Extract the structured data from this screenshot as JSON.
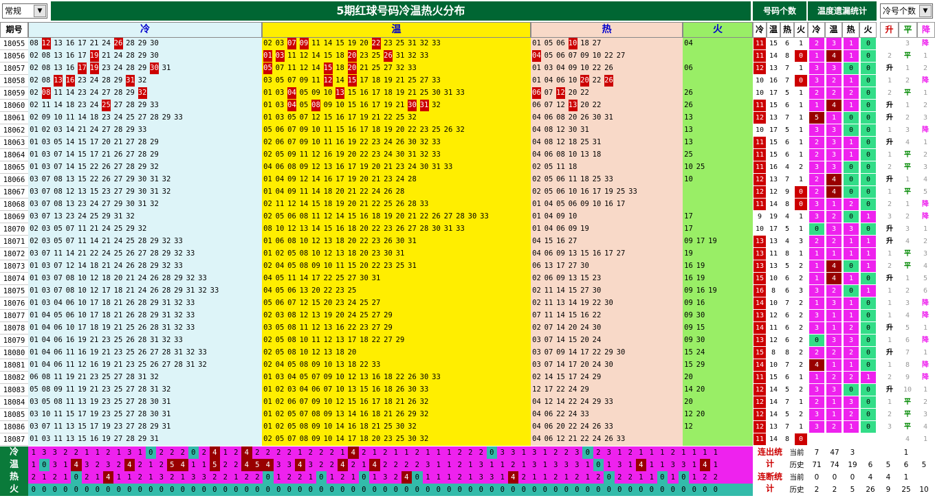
{
  "toolbar": {
    "mode": "常规",
    "title": "5期红球号码冷温热火分布",
    "count_header": "号码个数",
    "stats_header": "温度遗漏统计",
    "sort_select": "冷号个数"
  },
  "headers": {
    "period": "期号",
    "cold": "冷",
    "warm": "温",
    "hot": "热",
    "fire": "火",
    "sub": [
      "冷",
      "温",
      "热",
      "火",
      "冷",
      "温",
      "热",
      "火",
      "升",
      "平",
      "降"
    ]
  },
  "rows": [
    {
      "p": "18055",
      "c": "08 12 13 16 17 21 24 26 28 29 30",
      "w": "02 03 07 09 11 14 15 19 20 22 23 25 31 32 33",
      "h": "01 05 06 10 18 27",
      "f": "04",
      "n": [
        11,
        15,
        6,
        1
      ],
      "t": [
        2,
        3,
        1,
        0
      ],
      "d": [
        "",
        "3",
        "降"
      ]
    },
    {
      "p": "18056",
      "c": "02 08 13 16 17 19 21 24 28 29 30",
      "w": "01 03 11 12 14 15 18 20 23 25 26 31 32 33",
      "h": "04 05 06 07 09 10 22 27",
      "f": "",
      "n": [
        11,
        14,
        8,
        0
      ],
      "t": [
        1,
        4,
        1,
        0
      ],
      "d": [
        "2",
        "平",
        "1"
      ]
    },
    {
      "p": "18057",
      "c": "02 08 13 16 17 19 23 24 28 29 30 31",
      "w": "05 07 11 12 14 15 18 20 21 25 27 32 33",
      "h": "01 03 04 09 10 22 26",
      "f": "06",
      "n": [
        12,
        13,
        7,
        1
      ],
      "t": [
        3,
        3,
        0,
        0
      ],
      "d": [
        "升",
        "1",
        "2"
      ]
    },
    {
      "p": "18058",
      "c": "02 08 13 16 23 24 28 29 31 32",
      "w": "03 05 07 09 11 12 14 15 17 18 19 21 25 27 33",
      "h": "01 04 06 10 20 22 26",
      "f": "",
      "n": [
        10,
        16,
        7,
        0
      ],
      "t": [
        3,
        2,
        1,
        0
      ],
      "d": [
        "1",
        "2",
        "降"
      ]
    },
    {
      "p": "18059",
      "c": "02 08 11 14 23 24 27 28 29 32",
      "w": "01 03 04 05 09 10 13 15 16 17 18 19 21 25 30 31 33",
      "h": "06 07 12 20 22",
      "f": "26",
      "n": [
        10,
        17,
        5,
        1
      ],
      "t": [
        2,
        2,
        2,
        0
      ],
      "d": [
        "2",
        "平",
        "1"
      ]
    },
    {
      "p": "18060",
      "c": "02 11 14 18 23 24 25 27 28 29 33",
      "w": "01 03 04 05 08 09 10 15 16 17 19 21 30 31 32",
      "h": "06 07 12 13 20 22",
      "f": "26",
      "n": [
        11,
        15,
        6,
        1
      ],
      "t": [
        1,
        4,
        1,
        0
      ],
      "d": [
        "升",
        "1",
        "2"
      ]
    },
    {
      "p": "18061",
      "c": "02 09 10 11 14 18 23 24 25 27 28 29 33",
      "w": "01 03 05 07 12 15 16 17 19 21 22 25 32",
      "h": "04 06 08 20 26 30 31",
      "f": "13",
      "n": [
        12,
        13,
        7,
        1
      ],
      "t": [
        5,
        1,
        0,
        0
      ],
      "d": [
        "升",
        "2",
        "3"
      ]
    },
    {
      "p": "18062",
      "c": "01 02 03 14 21 24 27 28 29 33",
      "w": "05 06 07 09 10 11 15 16 17 18 19 20 22 23 25 26 32",
      "h": "04 08 12 30 31",
      "f": "13",
      "n": [
        10,
        17,
        5,
        1
      ],
      "t": [
        3,
        3,
        0,
        0
      ],
      "d": [
        "1",
        "3",
        "降"
      ]
    },
    {
      "p": "18063",
      "c": "01 03 05 14 15 17 20 21 27 28 29",
      "w": "02 06 07 09 10 11 16 19 22 23 24 26 30 32 33",
      "h": "04 08 12 18 25 31",
      "f": "13",
      "n": [
        11,
        15,
        6,
        1
      ],
      "t": [
        2,
        3,
        1,
        0
      ],
      "d": [
        "升",
        "4",
        "1"
      ]
    },
    {
      "p": "18064",
      "c": "01 03 07 14 15 17 21 26 27 28 29",
      "w": "02 05 09 11 12 16 19 20 22 23 24 30 31 32 33",
      "h": "04 06 08 10 13 18",
      "f": "25",
      "n": [
        11,
        15,
        6,
        1
      ],
      "t": [
        2,
        3,
        1,
        0
      ],
      "d": [
        "1",
        "平",
        "2"
      ]
    },
    {
      "p": "18065",
      "c": "01 03 07 14 15 22 26 27 28 29 32",
      "w": "04 06 08 09 12 13 16 17 19 20 21 23 24 30 31 33",
      "h": "02 05 11 18",
      "f": "10 25",
      "n": [
        11,
        16,
        4,
        2
      ],
      "t": [
        3,
        3,
        0,
        0
      ],
      "d": [
        "2",
        "平",
        "3"
      ]
    },
    {
      "p": "18066",
      "c": "03 07 08 13 15 22 26 27 29 30 31 32",
      "w": "01 04 09 12 14 16 17 19 20 21 23 24 28",
      "h": "02 05 06 11 18 25 33",
      "f": "10",
      "n": [
        12,
        13,
        7,
        1
      ],
      "t": [
        2,
        4,
        0,
        0
      ],
      "d": [
        "升",
        "1",
        "4"
      ]
    },
    {
      "p": "18067",
      "c": "03 07 08 12 13 15 23 27 29 30 31 32",
      "w": "01 04 09 11 14 18 20 21 22 24 26 28",
      "h": "02 05 06 10 16 17 19 25 33",
      "f": "",
      "n": [
        12,
        12,
        9,
        0
      ],
      "t": [
        2,
        4,
        0,
        0
      ],
      "d": [
        "1",
        "平",
        "5"
      ]
    },
    {
      "p": "18068",
      "c": "03 07 08 13 23 24 27 29 30 31 32",
      "w": "02 11 12 14 15 18 19 20 21 22 25 26 28 33",
      "h": "01 04 05 06 09 10 16 17",
      "f": "",
      "n": [
        11,
        14,
        8,
        0
      ],
      "t": [
        3,
        1,
        2,
        0
      ],
      "d": [
        "2",
        "1",
        "降"
      ]
    },
    {
      "p": "18069",
      "c": "03 07 13 23 24 25 29 31 32",
      "w": "02 05 06 08 11 12 14 15 16 18 19 20 21 22 26 27 28 30 33",
      "h": "01 04 09 10",
      "f": "17",
      "n": [
        9,
        19,
        4,
        1
      ],
      "t": [
        3,
        2,
        0,
        1
      ],
      "d": [
        "3",
        "2",
        "降"
      ]
    },
    {
      "p": "18070",
      "c": "02 03 05 07 11 21 24 25 29 32",
      "w": "08 10 12 13 14 15 16 18 20 22 23 26 27 28 30 31 33",
      "h": "01 04 06 09 19",
      "f": "17",
      "n": [
        10,
        17,
        5,
        1
      ],
      "t": [
        0,
        3,
        3,
        0
      ],
      "d": [
        "升",
        "3",
        "1"
      ]
    },
    {
      "p": "18071",
      "c": "02 03 05 07 11 14 21 24 25 28 29 32 33",
      "w": "01 06 08 10 12 13 18 20 22 23 26 30 31",
      "h": "04 15 16 27",
      "f": "09 17 19",
      "n": [
        13,
        13,
        4,
        3
      ],
      "t": [
        2,
        2,
        1,
        1
      ],
      "d": [
        "升",
        "4",
        "2"
      ]
    },
    {
      "p": "18072",
      "c": "03 07 11 14 21 22 24 25 26 27 28 29 32 33",
      "w": "01 02 05 08 10 12 13 18 20 23 30 31",
      "h": "04 06 09 13 15 16 17 27",
      "f": "19",
      "n": [
        13,
        11,
        8,
        1
      ],
      "t": [
        1,
        1,
        1,
        1
      ],
      "d": [
        "1",
        "平",
        "3"
      ]
    },
    {
      "p": "18073",
      "c": "01 03 07 12 14 18 21 24 26 28 29 32 33",
      "w": "02 04 05 08 09 10 11 15 20 22 23 25 31",
      "h": "06 13 17 27 30",
      "f": "16 19",
      "n": [
        13,
        13,
        5,
        2
      ],
      "t": [
        1,
        4,
        0,
        1
      ],
      "d": [
        "2",
        "平",
        "4"
      ]
    },
    {
      "p": "18074",
      "c": "01 03 07 08 10 12 18 20 21 24 26 28 29 32 33",
      "w": "04 05 11 14 17 22 25 27 30 31",
      "h": "02 06 09 13 15 23",
      "f": "16 19",
      "n": [
        15,
        10,
        6,
        2
      ],
      "t": [
        1,
        4,
        1,
        0
      ],
      "d": [
        "升",
        "1",
        "5"
      ]
    },
    {
      "p": "18075",
      "c": "01 03 07 08 10 12 17 18 21 24 26 28 29 31 32 33",
      "w": "04 05 06 13 20 22 23 25",
      "h": "02 11 14 15 27 30",
      "f": "09 16 19",
      "n": [
        16,
        8,
        6,
        3
      ],
      "t": [
        3,
        2,
        0,
        1
      ],
      "d": [
        "1",
        "2",
        "6"
      ]
    },
    {
      "p": "18076",
      "c": "01 03 04 06 10 17 18 21 26 28 29 31 32 33",
      "w": "05 06 07 12 15 20 23 24 25 27",
      "h": "02 11 13 14 19 22 30",
      "f": "09 16",
      "n": [
        14,
        10,
        7,
        2
      ],
      "t": [
        1,
        3,
        1,
        0
      ],
      "d": [
        "1",
        "3",
        "降"
      ]
    },
    {
      "p": "18077",
      "c": "01 04 05 06 10 17 18 21 26 28 29 31 32 33",
      "w": "02 03 08 12 13 19 20 24 25 27 29",
      "h": "07 11 14 15 16 22",
      "f": "09 30",
      "n": [
        13,
        12,
        6,
        2
      ],
      "t": [
        3,
        1,
        1,
        0
      ],
      "d": [
        "1",
        "4",
        "降"
      ]
    },
    {
      "p": "18078",
      "c": "01 04 06 10 17 18 19 21 25 26 28 31 32 33",
      "w": "03 05 08 11 12 13 16 22 23 27 29",
      "h": "02 07 14 20 24 30",
      "f": "09 15",
      "n": [
        14,
        11,
        6,
        2
      ],
      "t": [
        3,
        1,
        2,
        0
      ],
      "d": [
        "升",
        "5",
        "1"
      ]
    },
    {
      "p": "18079",
      "c": "01 04 06 16 19 21 23 25 26 28 31 32 33",
      "w": "02 05 08 10 11 12 13 17 18 22 27 29",
      "h": "03 07 14 15 20 24",
      "f": "09 30",
      "n": [
        13,
        12,
        6,
        2
      ],
      "t": [
        0,
        3,
        3,
        0
      ],
      "d": [
        "1",
        "6",
        "降"
      ]
    },
    {
      "p": "18080",
      "c": "01 04 06 11 16 19 21 23 25 26 27 28 31 32 33",
      "w": "02 05 08 10 12 13 18 20",
      "h": "03 07 09 14 17 22 29 30",
      "f": "15 24",
      "n": [
        15,
        8,
        8,
        2
      ],
      "t": [
        2,
        2,
        2,
        0
      ],
      "d": [
        "升",
        "7",
        "1"
      ]
    },
    {
      "p": "18081",
      "c": "01 04 06 11 12 16 19 21 23 25 26 27 28 31 32",
      "w": "02 04 05 08 09 10 13 18 22 33",
      "h": "03 07 14 17 20 24 30",
      "f": "15 29",
      "n": [
        14,
        10,
        7,
        2
      ],
      "t": [
        4,
        1,
        1,
        0
      ],
      "d": [
        "1",
        "8",
        "降"
      ]
    },
    {
      "p": "18082",
      "c": "06 08 11 19 21 23 25 27 28 31 32",
      "w": "01 03 04 05 07 09 10 12 13 16 18 22 26 30 33",
      "h": "02 14 15 17 24 29",
      "f": "20",
      "n": [
        11,
        15,
        6,
        1
      ],
      "t": [
        1,
        2,
        2,
        1
      ],
      "d": [
        "2",
        "9",
        "降"
      ]
    },
    {
      "p": "18083",
      "c": "05 08 09 11 19 21 23 25 27 28 31 32",
      "w": "01 02 03 04 06 07 10 13 15 16 18 26 30 33",
      "h": "12 17 22 24 29",
      "f": "14 20",
      "n": [
        12,
        14,
        5,
        2
      ],
      "t": [
        3,
        3,
        0,
        0
      ],
      "d": [
        "升",
        "10",
        "1"
      ]
    },
    {
      "p": "18084",
      "c": "03 05 08 11 13 19 23 25 27 28 30 31",
      "w": "01 02 06 07 09 10 12 15 16 17 18 21 26 32",
      "h": "04 12 14 22 24 29 33",
      "f": "20",
      "n": [
        12,
        14,
        7,
        1
      ],
      "t": [
        2,
        1,
        3,
        0
      ],
      "d": [
        "1",
        "平",
        "2"
      ]
    },
    {
      "p": "18085",
      "c": "03 10 11 15 17 19 23 25 27 28 30 31",
      "w": "01 02 05 07 08 09 13 14 16 18 21 26 29 32",
      "h": "04 06 22 24 33",
      "f": "12 20",
      "n": [
        12,
        14,
        5,
        2
      ],
      "t": [
        3,
        1,
        2,
        0
      ],
      "d": [
        "2",
        "平",
        "3"
      ]
    },
    {
      "p": "18086",
      "c": "03 07 11 13 15 17 19 23 27 28 29 31",
      "w": "01 02 05 08 09 10 14 16 18 21 25 30 32",
      "h": "04 06 20 22 24 26 33",
      "f": "12",
      "n": [
        12,
        13,
        7,
        1
      ],
      "t": [
        3,
        2,
        1,
        0
      ],
      "d": [
        "3",
        "平",
        "4"
      ]
    },
    {
      "p": "18087",
      "c": "01 03 11 13 15 16 19 27 28 29 31",
      "w": "02 05 07 08 09 10 14 17 18 20 23 25 30 32",
      "h": "04 06 12 21 22 24 26 33",
      "f": "",
      "n": [
        11,
        14,
        8,
        0
      ],
      "t": [
        "",
        "",
        "",
        ""
      ],
      "d": [
        "",
        "4",
        "1"
      ]
    }
  ],
  "hot_marks": {
    "18055": [
      "12",
      "26",
      "07",
      "09",
      "22",
      "10"
    ],
    "18056": [
      "19",
      "01",
      "03",
      "20",
      "26",
      "04"
    ],
    "18057": [
      "17",
      "19",
      "30",
      "05",
      "15",
      "20"
    ],
    "18058": [
      "13",
      "16",
      "31",
      "12",
      "15",
      "20",
      "26"
    ],
    "18059": [
      "08",
      "32",
      "04",
      "13",
      "06",
      "12"
    ],
    "18060": [
      "25",
      "04",
      "08",
      "30",
      "31",
      "13"
    ]
  },
  "bottom": {
    "labels": [
      "冷",
      "温",
      "热",
      "火"
    ],
    "cold": "1 3 3 2 2 1 1 2 1 3 1 0 2 2 2 0 2 4 1 2 4 2 2 2 2 1 2 2 2 1 4 2 1 2 1 1 2 1 1 1 2 2 2 0 3 3 1 3 1 2 2 3 0 2 3 1 2 1 1 1 2 1 1 1 1",
    "warm": "1 0 3 1 4 3 2 3 2 4 2 1 2 5 4 1 1 5 2 2 4 5 4 3 3 4 3 2 2 4 2 1 4 2 2 2 2 3 1 1 2 1 3 1 1 2 1 3 1 3 3 3 1 0 1 3 1 4 1 1 3 3 1 4 1",
    "hot": "2 1 2 1 0 2 1 4 1 1 2 1 3 2 1 3 3 2 2 1 2 2 0 1 2 2 1 0 1 2 1 0 1 3 2 4 0 1 1 1 2 1 3 3 1 4 2 1 1 2 1 2 1 2 0 2 2 1 1 0 1 0 1 2 2",
    "fire": "0 0 0 0 0 0 0 0 0 0 0 0 0 0 0 0 0 0 0 0 0 0 0 0 0 0 0 0 0 0 0 0 0 0 0 0 0 0 0 0 0 0 0 0 0 0 0 0 0 0 0 0 0 0 0 0 0 0 0 0 0 0 0 0 0"
  },
  "stats": {
    "lianchu": "连出统计",
    "lianduan": "连断统计",
    "cur": "当前",
    "hist": "历史",
    "lc_cur": [
      "7",
      "47",
      "3",
      "",
      "",
      "1"
    ],
    "lc_hist": [
      "71",
      "74",
      "19",
      "6",
      "5",
      "6",
      "5"
    ],
    "ld_cur": [
      "0",
      "0",
      "0",
      "4",
      "4",
      "1"
    ],
    "ld_hist": [
      "2",
      "2",
      "5",
      "26",
      "9",
      "25",
      "10"
    ]
  },
  "colors": {
    "cold_bg": "#ddf4f8",
    "warm_bg": "#ffee00",
    "hot_bg": "#f8d9c8",
    "fire_bg": "#99ee66",
    "magenta": "#ee22ee",
    "green": "#33dd88"
  }
}
